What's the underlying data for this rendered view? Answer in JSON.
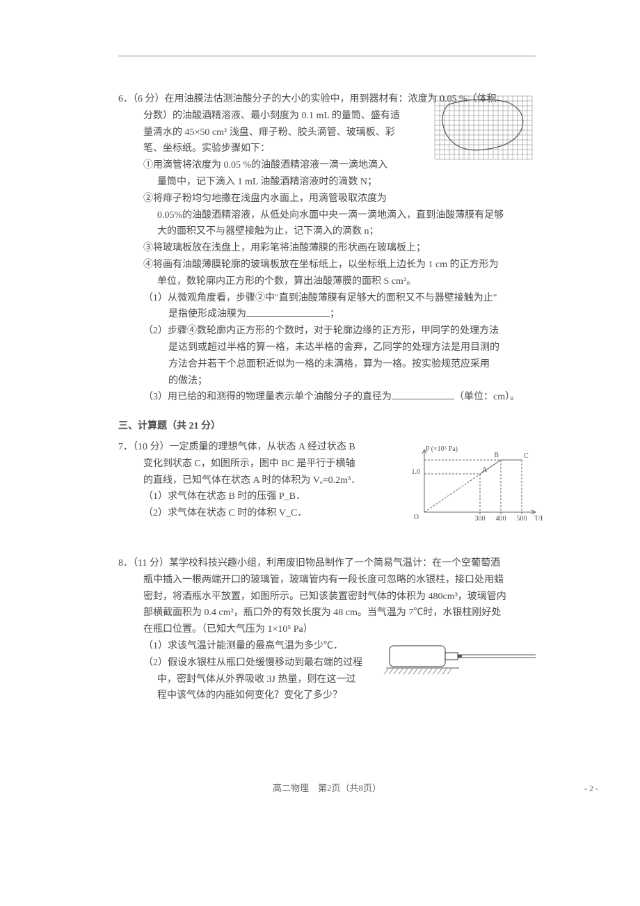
{
  "q6": {
    "number": "6．（6 分）",
    "stem1": "在用油膜法估测油酸分子的大小的实验中，用到器材有：浓度为 0.05 %（体积",
    "stem2": "分数）的油酸酒精溶液、最小刻度为 0.1 mL 的量筒、盛有适",
    "stem3": "量清水的 45×50 cm² 浅盘、痱子粉、胶头滴管、玻璃板、彩",
    "stem4": "笔、坐标纸。实验步骤如下：",
    "step1a": "①用滴管将浓度为 0.05 %的油酸酒精溶液一滴一滴地滴入",
    "step1b": "量筒中，记下滴入 1 mL 油酸酒精溶液时的滴数 N；",
    "step2a": "②将痱子粉均匀地撒在浅盘内水面上，用滴管吸取浓度为",
    "step2b": "0.05%的油酸酒精溶液，从低处向水面中央一滴一滴地滴入，直到油酸薄膜有足够",
    "step2c": "大的面积又不与器壁接触为止，记下滴入的滴数 n；",
    "step3": "③将玻璃板放在浅盘上，用彩笔将油酸薄膜的形状画在玻璃板上；",
    "step4a": "④将画有油酸薄膜轮廓的玻璃板放在坐标纸上，以坐标纸上边长为 1 cm 的正方形为",
    "step4b": "单位，数轮廓内正方形的个数，算出油酸薄膜的面积 S cm²。",
    "sub1a": "（1）从微观角度看，步骤②中\"直到油酸薄膜有足够大的面积又不与器壁接触为止\"",
    "sub1b_pre": "是指使形成油膜为",
    "sub1b_post": "；",
    "sub2a": "（2）步骤④数轮廓内正方形的个数时，对于轮廓边缘的正方形，甲同学的处理方法",
    "sub2b": "是达到或超过半格的算一格，未达半格的舍弃，乙同学的处理方法是用目测的",
    "sub2c": "方法合并若干个总面积近似为一格的未满格，算为一格。按实验规范应采用",
    "sub2d": "的做法；",
    "sub3_pre": "（3）用已给的和测得的物理量表示单个油酸分子的直径为",
    "sub3_post": "（单位：cm）。"
  },
  "section3": "三、计算题（共 21 分）",
  "q7": {
    "number": "7．（10 分）",
    "l1": "一定质量的理想气体，从状态 A 经过状态 B",
    "l2": "变化到状态 C，如图所示，图中 BC 是平行于横轴",
    "l3": "的直线，已知气体在状态 A 时的体积为 Vₐ=0.2m³．",
    "s1": "（1）求气体在状态 B 时的压强 P_B．",
    "s2": "（2）求气体在状态 C 时的体积 V_C．",
    "chart": {
      "ylabel": "P (×10⁵ Pa)",
      "xlabel": "T/K",
      "yval": "1.0",
      "xticks": [
        "300",
        "400",
        "500"
      ],
      "ptA": "A",
      "ptB": "B",
      "ptC": "C",
      "origin": "O"
    }
  },
  "q8": {
    "number": "8．（11 分）",
    "l1": "某学校科技兴趣小组，利用废旧物品制作了一个简易气温计：在一个空葡萄酒",
    "l2": "瓶中插入一根两端开口的玻璃管，玻璃管内有一段长度可忽略的水银柱，接口处用蜡",
    "l3": "密封，将酒瓶水平放置，如图所示。已知该装置密封气体的体积为 480cm³，玻璃管内",
    "l4": "部横截面积为 0.4 cm²，瓶口外的有效长度为 48 cm。当气温为 7℃时，水银柱刚好处",
    "l5": "在瓶口位置。（已知大气压为 1×10⁵ Pa）",
    "s1": "（1）求该气温计能测量的最高气温为多少℃．",
    "s2a": "（2）假设水银柱从瓶口处缓慢移动到最右端的过程",
    "s2b": "中，密封气体从外界吸收 3J 热量，则在这一过",
    "s2c": "程中该气体的内能如何变化？变化了多少？"
  },
  "footer": "高二物理　第2页（共8页）",
  "pagenum": "- 2 -",
  "grid": {
    "cols": 20,
    "rows": 13,
    "cell": 7,
    "stroke": "#777",
    "curve_stroke": "#555"
  }
}
